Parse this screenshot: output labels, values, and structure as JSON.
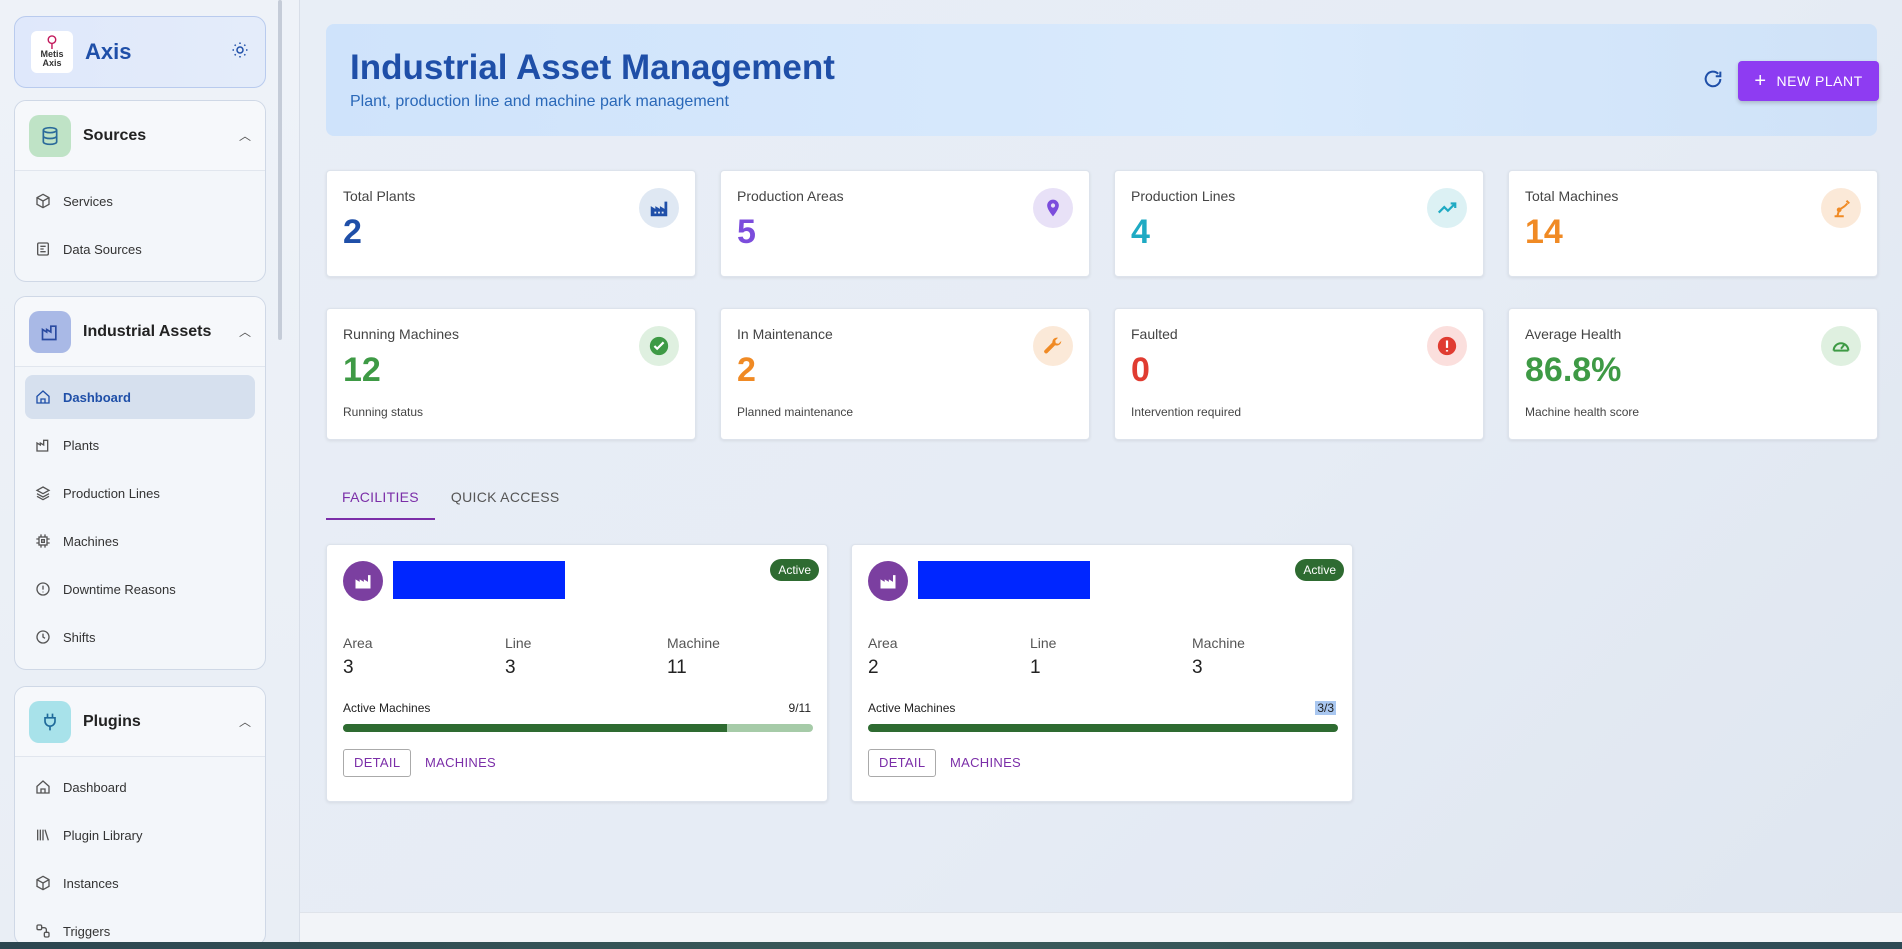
{
  "brand": {
    "title": "Axis",
    "logo_text_1": "Metis",
    "logo_text_2": "Axis"
  },
  "sidebar": {
    "sources": {
      "label": "Sources",
      "items": [
        {
          "label": "Services"
        },
        {
          "label": "Data Sources"
        }
      ]
    },
    "industrial": {
      "label": "Industrial Assets",
      "items": [
        {
          "label": "Dashboard"
        },
        {
          "label": "Plants"
        },
        {
          "label": "Production Lines"
        },
        {
          "label": "Machines"
        },
        {
          "label": "Downtime Reasons"
        },
        {
          "label": "Shifts"
        }
      ]
    },
    "plugins": {
      "label": "Plugins",
      "items": [
        {
          "label": "Dashboard"
        },
        {
          "label": "Plugin Library"
        },
        {
          "label": "Instances"
        },
        {
          "label": "Triggers"
        }
      ]
    }
  },
  "header": {
    "title": "Industrial Asset Management",
    "subtitle": "Plant, production line and machine park management",
    "new_button": "NEW PLANT"
  },
  "stats": [
    {
      "label": "Total Plants",
      "value": "2",
      "color": "#1f4fa8",
      "sub": ""
    },
    {
      "label": "Production Areas",
      "value": "5",
      "color": "#7c4ddc",
      "sub": ""
    },
    {
      "label": "Production Lines",
      "value": "4",
      "color": "#1eaac3",
      "sub": ""
    },
    {
      "label": "Total Machines",
      "value": "14",
      "color": "#f08a24",
      "sub": ""
    },
    {
      "label": "Running Machines",
      "value": "12",
      "color": "#3e9a45",
      "sub": "Running status"
    },
    {
      "label": "In Maintenance",
      "value": "2",
      "color": "#f08a24",
      "sub": "Planned maintenance"
    },
    {
      "label": "Faulted",
      "value": "0",
      "color": "#e03c31",
      "sub": "Intervention required"
    },
    {
      "label": "Average Health",
      "value": "86.8%",
      "color": "#3e9a45",
      "sub": "Machine health score"
    }
  ],
  "tabs": [
    {
      "label": "FACILITIES"
    },
    {
      "label": "QUICK ACCESS"
    }
  ],
  "plants": [
    {
      "status": "Active",
      "metrics": [
        {
          "label": "Area",
          "value": "3"
        },
        {
          "label": "Line",
          "value": "3"
        },
        {
          "label": "Machine",
          "value": "11"
        }
      ],
      "active_label": "Active Machines",
      "active_value": "9/11",
      "active_fraction": 0.818,
      "detail": "DETAIL",
      "machines": "MACHINES"
    },
    {
      "status": "Active",
      "metrics": [
        {
          "label": "Area",
          "value": "2"
        },
        {
          "label": "Line",
          "value": "1"
        },
        {
          "label": "Machine",
          "value": "3"
        }
      ],
      "active_label": "Active Machines",
      "active_value": "3/3",
      "active_fraction": 1.0,
      "detail": "DETAIL",
      "machines": "MACHINES"
    }
  ]
}
